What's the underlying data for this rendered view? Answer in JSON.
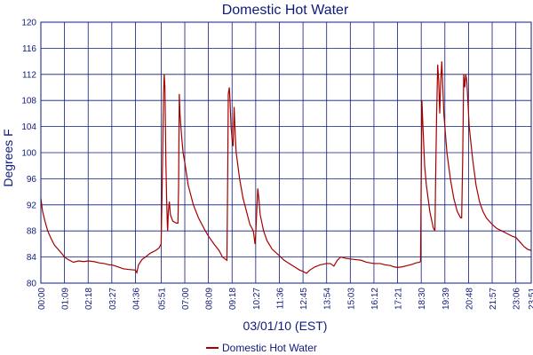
{
  "chart_data": {
    "type": "line",
    "title": "Domestic Hot Water",
    "xlabel": "03/01/10 (EST)",
    "ylabel": "Degrees F",
    "ylim": [
      80,
      120
    ],
    "yticks": [
      80,
      84,
      88,
      92,
      96,
      100,
      104,
      108,
      112,
      116,
      120
    ],
    "xlim": [
      "00:00",
      "23:51"
    ],
    "xticks": [
      "00:00",
      "01:09",
      "02:18",
      "03:27",
      "04:36",
      "05:51",
      "07:00",
      "08:09",
      "09:18",
      "10:27",
      "11:36",
      "12:45",
      "13:54",
      "15:03",
      "16:12",
      "17:21",
      "18:30",
      "19:39",
      "20:48",
      "21:57",
      "23:06",
      "23:51"
    ],
    "grid": true,
    "legend_position": "bottom",
    "series": [
      {
        "name": "Domestic Hot Water",
        "color": "#a50000",
        "points": [
          [
            "00:00",
            93
          ],
          [
            "00:05",
            91
          ],
          [
            "00:12",
            89.5
          ],
          [
            "00:20",
            88
          ],
          [
            "00:30",
            86.8
          ],
          [
            "00:40",
            85.8
          ],
          [
            "00:50",
            85.2
          ],
          [
            "01:00",
            84.6
          ],
          [
            "01:09",
            84.0
          ],
          [
            "01:20",
            83.6
          ],
          [
            "01:35",
            83.2
          ],
          [
            "01:50",
            83.4
          ],
          [
            "02:05",
            83.3
          ],
          [
            "02:18",
            83.4
          ],
          [
            "02:35",
            83.3
          ],
          [
            "02:50",
            83.1
          ],
          [
            "03:05",
            83.0
          ],
          [
            "03:20",
            82.8
          ],
          [
            "03:27",
            82.8
          ],
          [
            "03:45",
            82.5
          ],
          [
            "04:00",
            82.2
          ],
          [
            "04:15",
            82.1
          ],
          [
            "04:36",
            82.0
          ],
          [
            "04:40",
            81.6
          ],
          [
            "04:45",
            82.8
          ],
          [
            "04:55",
            83.6
          ],
          [
            "05:05",
            84.0
          ],
          [
            "05:20",
            84.6
          ],
          [
            "05:35",
            85.0
          ],
          [
            "05:45",
            85.4
          ],
          [
            "05:51",
            86.0
          ],
          [
            "05:55",
            98.0
          ],
          [
            "05:58",
            109.0
          ],
          [
            "06:00",
            112.0
          ],
          [
            "06:02",
            110.0
          ],
          [
            "06:05",
            98.0
          ],
          [
            "06:07",
            93.0
          ],
          [
            "06:09",
            89.0
          ],
          [
            "06:10",
            88.0
          ],
          [
            "06:12",
            91.0
          ],
          [
            "06:15",
            92.5
          ],
          [
            "06:18",
            90.5
          ],
          [
            "06:25",
            89.5
          ],
          [
            "06:35",
            89.2
          ],
          [
            "06:40",
            89.2
          ],
          [
            "06:42",
            95.0
          ],
          [
            "06:44",
            109.0
          ],
          [
            "06:46",
            106.0
          ],
          [
            "06:50",
            103.0
          ],
          [
            "06:55",
            100.0
          ],
          [
            "07:00",
            98.5
          ],
          [
            "07:10",
            95.0
          ],
          [
            "07:25",
            92.0
          ],
          [
            "07:40",
            90.0
          ],
          [
            "08:00",
            88.0
          ],
          [
            "08:09",
            87.2
          ],
          [
            "08:25",
            86.0
          ],
          [
            "08:40",
            85.0
          ],
          [
            "08:50",
            84.0
          ],
          [
            "09:00",
            83.6
          ],
          [
            "09:03",
            83.5
          ],
          [
            "09:05",
            95.0
          ],
          [
            "09:07",
            109.0
          ],
          [
            "09:10",
            110.0
          ],
          [
            "09:12",
            108.0
          ],
          [
            "09:15",
            104.0
          ],
          [
            "09:18",
            102.0
          ],
          [
            "09:21",
            101.0
          ],
          [
            "09:24",
            107.0
          ],
          [
            "09:27",
            103.0
          ],
          [
            "09:30",
            100.0
          ],
          [
            "09:40",
            96.0
          ],
          [
            "09:50",
            93.0
          ],
          [
            "10:00",
            91.0
          ],
          [
            "10:10",
            89.0
          ],
          [
            "10:20",
            88.0
          ],
          [
            "10:25",
            86.0
          ],
          [
            "10:27",
            87.5
          ],
          [
            "10:30",
            91.0
          ],
          [
            "10:33",
            94.5
          ],
          [
            "10:36",
            93.0
          ],
          [
            "10:40",
            90.5
          ],
          [
            "10:50",
            88.0
          ],
          [
            "11:00",
            86.5
          ],
          [
            "11:15",
            85.2
          ],
          [
            "11:36",
            84.2
          ],
          [
            "11:50",
            83.5
          ],
          [
            "12:05",
            83.0
          ],
          [
            "12:20",
            82.5
          ],
          [
            "12:35",
            82.0
          ],
          [
            "12:45",
            81.8
          ],
          [
            "12:55",
            81.5
          ],
          [
            "13:05",
            82.0
          ],
          [
            "13:20",
            82.5
          ],
          [
            "13:35",
            82.8
          ],
          [
            "13:54",
            83.0
          ],
          [
            "14:05",
            83.0
          ],
          [
            "14:15",
            82.6
          ],
          [
            "14:25",
            83.5
          ],
          [
            "14:35",
            84.0
          ],
          [
            "14:50",
            83.8
          ],
          [
            "15:03",
            83.7
          ],
          [
            "15:20",
            83.6
          ],
          [
            "15:35",
            83.5
          ],
          [
            "15:50",
            83.2
          ],
          [
            "16:12",
            83.0
          ],
          [
            "16:30",
            83.0
          ],
          [
            "16:45",
            82.8
          ],
          [
            "17:00",
            82.7
          ],
          [
            "17:10",
            82.5
          ],
          [
            "17:21",
            82.4
          ],
          [
            "17:35",
            82.5
          ],
          [
            "17:50",
            82.7
          ],
          [
            "18:05",
            82.9
          ],
          [
            "18:15",
            83.1
          ],
          [
            "18:25",
            83.2
          ],
          [
            "18:28",
            83.3
          ],
          [
            "18:30",
            96.0
          ],
          [
            "18:32",
            108.0
          ],
          [
            "18:35",
            104.0
          ],
          [
            "18:40",
            98.0
          ],
          [
            "18:45",
            95.0
          ],
          [
            "18:55",
            91.0
          ],
          [
            "19:05",
            88.5
          ],
          [
            "19:10",
            88.0
          ],
          [
            "19:12",
            96.0
          ],
          [
            "19:15",
            106.0
          ],
          [
            "19:18",
            113.5
          ],
          [
            "19:21",
            111.0
          ],
          [
            "19:24",
            106.0
          ],
          [
            "19:27",
            111.0
          ],
          [
            "19:30",
            114.0
          ],
          [
            "19:33",
            110.0
          ],
          [
            "19:36",
            106.0
          ],
          [
            "19:39",
            104.0
          ],
          [
            "19:45",
            100.0
          ],
          [
            "19:55",
            96.0
          ],
          [
            "20:05",
            93.0
          ],
          [
            "20:15",
            91.0
          ],
          [
            "20:25",
            90.0
          ],
          [
            "20:28",
            90.0
          ],
          [
            "20:31",
            99.0
          ],
          [
            "20:34",
            112.0
          ],
          [
            "20:37",
            110.0
          ],
          [
            "20:40",
            112.0
          ],
          [
            "20:43",
            111.0
          ],
          [
            "20:46",
            108.0
          ],
          [
            "20:50",
            104.0
          ],
          [
            "21:00",
            99.0
          ],
          [
            "21:10",
            95.0
          ],
          [
            "21:20",
            92.5
          ],
          [
            "21:30",
            91.0
          ],
          [
            "21:40",
            90.0
          ],
          [
            "21:57",
            89.0
          ],
          [
            "22:10",
            88.4
          ],
          [
            "22:25",
            88.0
          ],
          [
            "22:40",
            87.6
          ],
          [
            "22:55",
            87.2
          ],
          [
            "23:06",
            87.0
          ],
          [
            "23:20",
            86.2
          ],
          [
            "23:30",
            85.6
          ],
          [
            "23:40",
            85.2
          ],
          [
            "23:51",
            85.0
          ]
        ]
      }
    ]
  }
}
